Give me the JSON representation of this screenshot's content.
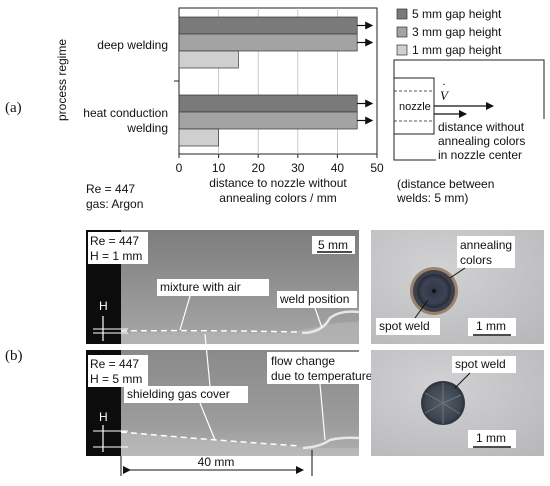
{
  "panel_labels": {
    "a": "(a)",
    "b": "(b)"
  },
  "chart_data": {
    "type": "bar",
    "orientation": "horizontal",
    "ylabel": "process regime",
    "xlabel": [
      "distance to nozzle without",
      "annealing colors / mm"
    ],
    "categories": [
      [
        "deep welding"
      ],
      [
        "heat conduction",
        "welding"
      ]
    ],
    "series": [
      {
        "name": "5 mm gap height",
        "values": [
          45,
          45
        ],
        "color": "#7a7a7a"
      },
      {
        "name": "3 mm gap height",
        "values": [
          45,
          45
        ],
        "color": "#a3a3a3"
      },
      {
        "name": "1 mm gap height",
        "values": [
          15,
          10
        ],
        "color": "#cfcfcf"
      }
    ],
    "arrow_on_values": [
      [
        true,
        true,
        false
      ],
      [
        true,
        true,
        false
      ]
    ],
    "xlim": [
      0,
      50
    ],
    "xticks": [
      "0",
      "10",
      "20",
      "30",
      "40",
      "50"
    ],
    "grid": "vertical",
    "legend_position": "right"
  },
  "params": {
    "line1": "Re = 447",
    "line2": "gas: Argon"
  },
  "nozzle_sketch": {
    "nozzle_label": "nozzle",
    "flow_symbol": "V",
    "caption": [
      "distance without",
      "annealing colors",
      "in nozzle center"
    ],
    "note": [
      "(distance between",
      "welds: 5 mm)"
    ]
  },
  "photos": {
    "top": {
      "re": "Re = 447",
      "h": "H = 1 mm",
      "scale": "5 mm",
      "mixture": "mixture with air",
      "weld_position": "weld position",
      "h_marker": "H"
    },
    "bottom": {
      "re": "Re = 447",
      "h": "H = 5 mm",
      "flow_change": [
        "flow change",
        "due to temperature"
      ],
      "shielding": "shielding gas cover",
      "h_marker": "H",
      "dimension": "40 mm"
    },
    "spot_top": {
      "annealing": [
        "annealing",
        "colors"
      ],
      "spot": "spot weld",
      "scale": "1 mm"
    },
    "spot_bottom": {
      "spot": "spot weld",
      "scale": "1 mm"
    }
  },
  "colors": {
    "bar5": "#7a7a7a",
    "bar3": "#a3a3a3",
    "bar1": "#cfcfcf"
  }
}
